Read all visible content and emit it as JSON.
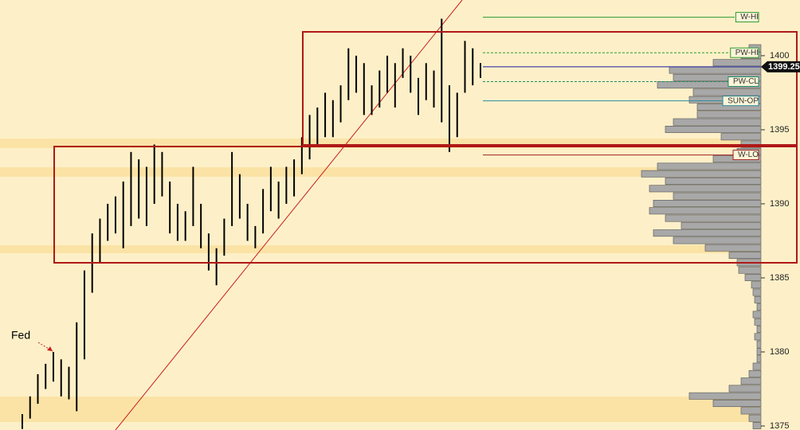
{
  "chart_data": {
    "type": "price-bars",
    "annotation": "Fed",
    "color": "#000000",
    "high": [
      1375.8,
      1377.0,
      1378.5,
      1379.2,
      1380.0,
      1379.5,
      1379.0,
      1382.0,
      1385.5,
      1388.0,
      1389.0,
      1390.0,
      1390.5,
      1391.5,
      1393.5,
      1393.0,
      1392.5,
      1394.0,
      1393.5,
      1391.5,
      1390.0,
      1389.5,
      1392.5,
      1390.0,
      1388.0,
      1387.0,
      1389.0,
      1393.5,
      1392.0,
      1390.0,
      1388.5,
      1391.0,
      1392.5,
      1391.5,
      1392.5,
      1393.0,
      1394.5,
      1396.0,
      1396.5,
      1397.5,
      1397.0,
      1398.0,
      1400.5,
      1400.0,
      1399.5,
      1398.0,
      1399.0,
      1400.0,
      1399.5,
      1400.5,
      1400.0,
      1398.5,
      1399.5,
      1399.0,
      1402.5,
      1398.0,
      1397.5,
      1401.0,
      1400.5,
      1399.5
    ],
    "low": [
      1374.8,
      1375.5,
      1376.5,
      1377.5,
      1378.0,
      1377.0,
      1376.8,
      1376.0,
      1379.5,
      1384.0,
      1386.0,
      1387.5,
      1388.0,
      1387.0,
      1388.5,
      1389.0,
      1388.5,
      1390.0,
      1390.5,
      1388.0,
      1387.5,
      1387.5,
      1388.5,
      1387.0,
      1385.5,
      1384.5,
      1386.5,
      1388.5,
      1389.0,
      1387.5,
      1387.0,
      1388.0,
      1389.5,
      1389.0,
      1390.0,
      1390.5,
      1392.0,
      1393.0,
      1394.0,
      1394.5,
      1394.5,
      1395.5,
      1397.0,
      1397.5,
      1396.0,
      1396.0,
      1396.5,
      1397.5,
      1396.5,
      1398.5,
      1397.5,
      1396.0,
      1397.0,
      1396.5,
      1395.5,
      1393.5,
      1394.5,
      1397.5,
      1398.0,
      1398.5
    ],
    "profile": {
      "color": "#a8a8a8",
      "prices": [
        1375,
        1375.5,
        1376,
        1376.5,
        1377,
        1377.5,
        1378,
        1378.5,
        1379,
        1379.5,
        1380,
        1380.5,
        1381,
        1381.5,
        1382,
        1382.5,
        1383,
        1383.5,
        1384,
        1384.5,
        1385,
        1385.5,
        1386,
        1386.5,
        1387,
        1387.5,
        1388,
        1388.5,
        1389,
        1389.5,
        1390,
        1390.5,
        1391,
        1391.5,
        1392,
        1392.5,
        1393,
        1393.5,
        1394,
        1394.5,
        1395,
        1395.5,
        1396,
        1396.5,
        1397,
        1397.5,
        1398,
        1398.5,
        1399,
        1399.5,
        1400,
        1400.5
      ],
      "volumes": [
        10,
        15,
        25,
        60,
        90,
        40,
        25,
        15,
        10,
        5,
        5,
        5,
        8,
        5,
        8,
        10,
        5,
        8,
        10,
        12,
        20,
        28,
        30,
        40,
        70,
        110,
        135,
        100,
        120,
        140,
        135,
        110,
        140,
        120,
        150,
        130,
        60,
        30,
        25,
        50,
        120,
        110,
        80,
        80,
        90,
        85,
        130,
        110,
        115,
        60,
        25,
        15
      ]
    },
    "levels": [
      {
        "label": "W-HI",
        "value": 1402.6,
        "color": "#2e9a2e",
        "dashed": false
      },
      {
        "label": "PW-HI",
        "value": 1400.2,
        "color": "#2e9a2e",
        "dashed": true
      },
      {
        "label": "PW-CL",
        "value": 1398.25,
        "color": "#1e8a6a",
        "dashed": true
      },
      {
        "label": "SUN-OP",
        "value": 1396.95,
        "color": "#2a8aa0",
        "dashed": false
      },
      {
        "label": "W-LO",
        "value": 1393.3,
        "color": "#a02020",
        "dashed": false
      }
    ],
    "last_price": {
      "value": 1399.25,
      "label": "1399.25",
      "color": "#1a1aa0"
    },
    "ylim": [
      1374.73,
      1403.76
    ],
    "yticks": [
      1375,
      1380,
      1385,
      1390,
      1395,
      1400
    ]
  }
}
